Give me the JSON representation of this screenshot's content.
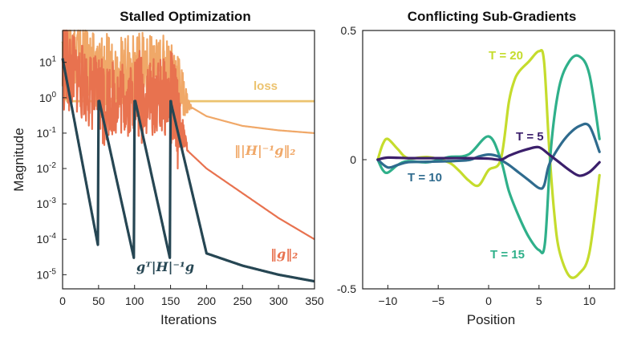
{
  "chart_data": [
    {
      "type": "line",
      "title": "Stalled Optimization",
      "xlabel": "Iterations",
      "ylabel": "Magnitude",
      "yscale": "log",
      "xlim": [
        0,
        350
      ],
      "ylim_exponents": [
        -5.4,
        1.9
      ],
      "x_ticks": [
        "0",
        "50",
        "100",
        "150",
        "200",
        "250",
        "300",
        "350"
      ],
      "y_ticks": [
        {
          "base": "10",
          "exp": "1"
        },
        {
          "base": "10",
          "exp": "0"
        },
        {
          "base": "10",
          "exp": "-1"
        },
        {
          "base": "10",
          "exp": "-2"
        },
        {
          "base": "10",
          "exp": "-3"
        },
        {
          "base": "10",
          "exp": "-4"
        },
        {
          "base": "10",
          "exp": "-5"
        }
      ],
      "restart_iterations": [
        0,
        50,
        100,
        150
      ],
      "series": [
        {
          "name": "loss",
          "label": "loss",
          "color": "#ecc36f",
          "x": [
            0,
            5,
            10,
            50,
            100,
            150,
            200,
            250,
            300,
            350
          ],
          "values": [
            40,
            1.2,
            0.8,
            0.8,
            0.8,
            0.8,
            0.8,
            0.8,
            0.8,
            0.8
          ]
        },
        {
          "name": "hinv_grad_norm",
          "label": "||H|^-1 g||2",
          "label_text": "‖|H|⁻¹g‖₂",
          "color": "#f0a868",
          "x": [
            0,
            50,
            100,
            150,
            175,
            200,
            250,
            300,
            350
          ],
          "values": [
            40,
            5,
            6,
            6,
            0.6,
            0.3,
            0.16,
            0.12,
            0.1
          ]
        },
        {
          "name": "grad_norm",
          "label": "||g||2",
          "label_text": "‖g‖₂",
          "color": "#e8724f",
          "x": [
            0,
            50,
            100,
            150,
            175,
            200,
            250,
            300,
            350
          ],
          "values": [
            10,
            1.0,
            1.0,
            1.0,
            0.03,
            0.01,
            0.002,
            0.0004,
            0.0001
          ]
        },
        {
          "name": "gt_hinv_g",
          "label": "g^T|H|^-1 g",
          "label_text": "gᵀ|H|⁻¹g",
          "color": "#264653",
          "x": [
            0,
            49,
            50,
            99,
            100,
            149,
            150,
            200,
            250,
            300,
            350
          ],
          "values": [
            13,
            7e-05,
            1.0,
            3e-05,
            1.0,
            3e-05,
            0.8,
            4e-05,
            1.8e-05,
            1e-05,
            6.5e-06
          ]
        }
      ]
    },
    {
      "type": "line",
      "title": "Conflicting Sub-Gradients",
      "xlabel": "Position",
      "ylabel": "",
      "xlim": [
        -12.5,
        12.5
      ],
      "ylim": [
        -0.5,
        0.5
      ],
      "x_ticks": [
        "−10",
        "−5",
        "0",
        "5",
        "10"
      ],
      "y_ticks": [
        "0.5",
        "0",
        "-0.5"
      ],
      "series": [
        {
          "name": "T = 5",
          "label": "T = 5",
          "color": "#3b1f6b",
          "x": [
            -11,
            -10,
            -8,
            -6,
            -4,
            -2,
            0,
            1.2,
            2,
            3,
            4,
            5,
            6,
            7,
            8,
            9,
            10,
            11
          ],
          "values": [
            0,
            0.008,
            0.006,
            0.006,
            0.006,
            0.006,
            0.004,
            0,
            0.015,
            0.03,
            0.042,
            0.048,
            0.02,
            -0.01,
            -0.04,
            -0.062,
            -0.048,
            -0.01
          ]
        },
        {
          "name": "T = 10",
          "label": "T = 10",
          "color": "#2f6b8e",
          "x": [
            -11,
            -10,
            -9,
            -8,
            -6,
            -4,
            -2,
            -1,
            0,
            1,
            1.2,
            2,
            3,
            4,
            5,
            5.5,
            6,
            7,
            8,
            9,
            10,
            11
          ],
          "values": [
            0,
            -0.03,
            -0.02,
            -0.01,
            -0.008,
            -0.006,
            -0.002,
            0.012,
            0.02,
            0.012,
            0,
            -0.02,
            -0.05,
            -0.08,
            -0.11,
            -0.1,
            -0.02,
            0.05,
            0.1,
            0.13,
            0.13,
            0.03
          ]
        },
        {
          "name": "T = 15",
          "label": "T = 15",
          "color": "#2fb08a",
          "x": [
            -11,
            -10.5,
            -10,
            -9,
            -8,
            -6,
            -4,
            -2,
            0,
            1.2,
            2,
            3,
            4,
            5,
            5.6,
            6.2,
            7,
            8,
            9,
            10,
            11
          ],
          "values": [
            0,
            -0.04,
            -0.05,
            -0.02,
            -0.006,
            -0.01,
            0.01,
            0.02,
            0.09,
            0,
            -0.12,
            -0.22,
            -0.3,
            -0.35,
            -0.32,
            0.05,
            0.28,
            0.38,
            0.4,
            0.33,
            0.08
          ]
        },
        {
          "name": "T = 20",
          "label": "T = 20",
          "color": "#c5dc2d",
          "x": [
            -11,
            -10.5,
            -10,
            -9,
            -8,
            -6,
            -4,
            -3,
            -2,
            -1,
            0,
            1.2,
            2,
            2.5,
            3,
            4,
            5,
            5.5,
            6,
            6.5,
            7,
            8,
            9,
            10,
            11
          ],
          "values": [
            0,
            0.06,
            0.08,
            0.04,
            0.006,
            0.01,
            -0.01,
            -0.04,
            -0.08,
            -0.1,
            -0.04,
            0,
            0.22,
            0.3,
            0.34,
            0.38,
            0.42,
            0.38,
            0.05,
            -0.2,
            -0.35,
            -0.45,
            -0.44,
            -0.36,
            -0.06
          ]
        }
      ]
    }
  ]
}
